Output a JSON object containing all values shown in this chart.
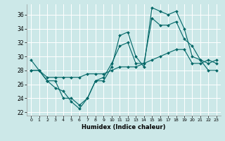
{
  "xlabel": "Humidex (Indice chaleur)",
  "bg_color": "#cce8e8",
  "grid_color": "#ffffff",
  "line_color": "#006666",
  "ylim": [
    21.5,
    37.5
  ],
  "xlim": [
    -0.5,
    23.5
  ],
  "yticks": [
    22,
    24,
    26,
    28,
    30,
    32,
    34,
    36
  ],
  "xticks": [
    0,
    1,
    2,
    3,
    4,
    5,
    6,
    7,
    8,
    9,
    10,
    11,
    12,
    13,
    14,
    15,
    16,
    17,
    18,
    19,
    20,
    21,
    22,
    23
  ],
  "series1_y": [
    29.5,
    28.0,
    26.5,
    25.5,
    25.0,
    23.5,
    22.5,
    24.0,
    26.5,
    26.5,
    28.5,
    33.0,
    33.5,
    30.0,
    28.5,
    37.0,
    36.5,
    36.0,
    36.5,
    34.0,
    30.0,
    29.5,
    29.0,
    29.5
  ],
  "series2_y": [
    28.0,
    28.0,
    26.5,
    26.5,
    24.0,
    24.0,
    23.0,
    24.0,
    26.5,
    27.0,
    29.0,
    31.5,
    32.0,
    29.0,
    29.0,
    35.5,
    34.5,
    34.5,
    35.0,
    32.5,
    31.5,
    29.5,
    28.0,
    28.0
  ],
  "series3_y": [
    28.0,
    28.0,
    27.0,
    27.0,
    27.0,
    27.0,
    27.0,
    27.5,
    27.5,
    27.5,
    28.0,
    28.5,
    28.5,
    28.5,
    29.0,
    29.5,
    30.0,
    30.5,
    31.0,
    31.0,
    29.0,
    29.0,
    29.5,
    29.0
  ],
  "xlabel_fontsize": 6.0,
  "ytick_fontsize": 5.5,
  "xtick_fontsize": 4.5,
  "linewidth": 0.8,
  "markersize": 2.0
}
